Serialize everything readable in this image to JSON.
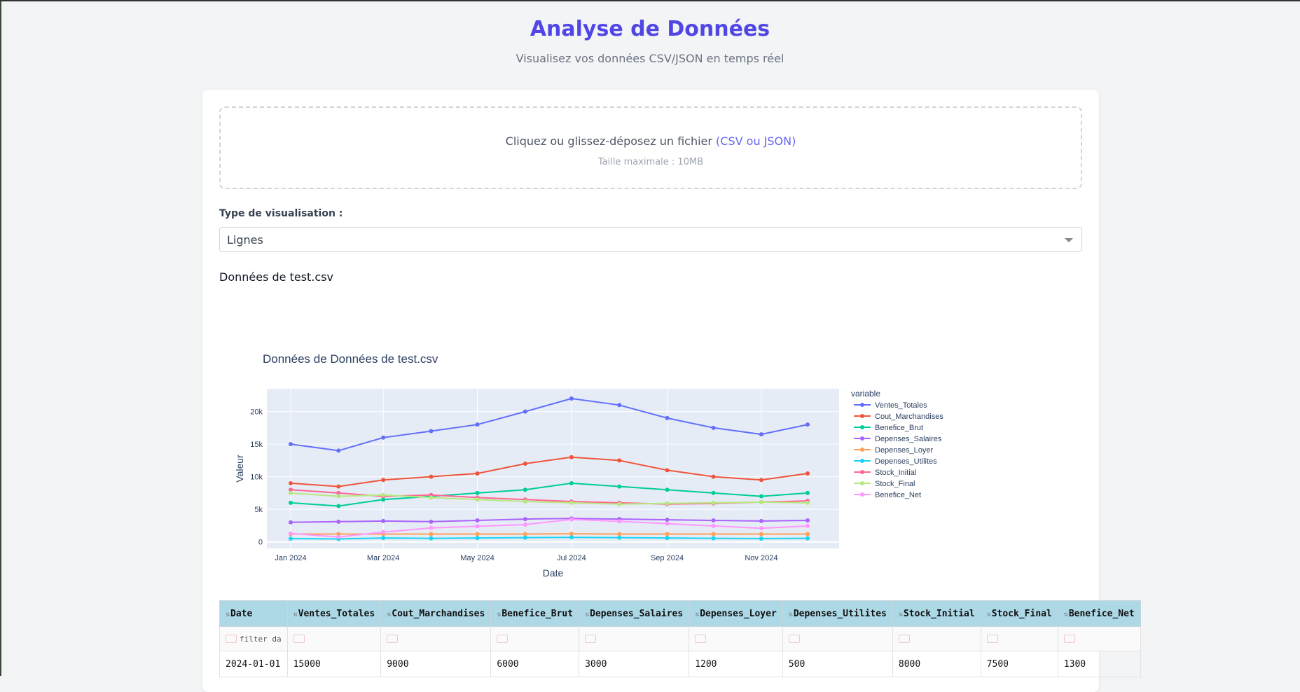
{
  "header": {
    "title": "Analyse de Données",
    "subtitle": "Visualisez vos données CSV/JSON en temps réel"
  },
  "upload": {
    "prompt": "Cliquez ou glissez-déposez un fichier",
    "formats": "(CSV ou JSON)",
    "max_size": "Taille maximale : 10MB"
  },
  "viz": {
    "label": "Type de visualisation :",
    "selected": "Lignes"
  },
  "data_heading": "Données de test.csv",
  "colors": {
    "accent": "#4f46e5",
    "plot_bg": "#e5ecf6",
    "table_header": "#add8e6"
  },
  "chart_data": {
    "type": "line",
    "title": "Données de Données de test.csv",
    "xlabel": "Date",
    "ylabel": "Valeur",
    "legend_title": "variable",
    "legend_position": "right",
    "grid": true,
    "ylim": [
      -1000,
      23500
    ],
    "x": [
      "2024-01-01",
      "2024-02-01",
      "2024-03-01",
      "2024-04-01",
      "2024-05-01",
      "2024-06-01",
      "2024-07-01",
      "2024-08-01",
      "2024-09-01",
      "2024-10-01",
      "2024-11-01",
      "2024-12-01"
    ],
    "x_ticks": [
      {
        "date": "2024-01-01",
        "label": "Jan 2024"
      },
      {
        "date": "2024-03-01",
        "label": "Mar 2024"
      },
      {
        "date": "2024-05-01",
        "label": "May 2024"
      },
      {
        "date": "2024-07-01",
        "label": "Jul 2024"
      },
      {
        "date": "2024-09-01",
        "label": "Sep 2024"
      },
      {
        "date": "2024-11-01",
        "label": "Nov 2024"
      }
    ],
    "y_ticks": [
      {
        "value": 0,
        "label": "0"
      },
      {
        "value": 5000,
        "label": "5k"
      },
      {
        "value": 10000,
        "label": "10k"
      },
      {
        "value": 15000,
        "label": "15k"
      },
      {
        "value": 20000,
        "label": "20k"
      }
    ],
    "series": [
      {
        "name": "Ventes_Totales",
        "color": "#636efa",
        "values": [
          15000,
          14000,
          16000,
          17000,
          18000,
          20000,
          22000,
          21000,
          19000,
          17500,
          16500,
          18000
        ]
      },
      {
        "name": "Cout_Marchandises",
        "color": "#ef553b",
        "values": [
          9000,
          8500,
          9500,
          10000,
          10500,
          12000,
          13000,
          12500,
          11000,
          10000,
          9500,
          10500
        ]
      },
      {
        "name": "Benefice_Brut",
        "color": "#00cc96",
        "values": [
          6000,
          5500,
          6500,
          7000,
          7500,
          8000,
          9000,
          8500,
          8000,
          7500,
          7000,
          7500
        ]
      },
      {
        "name": "Depenses_Salaires",
        "color": "#ab63fa",
        "values": [
          3000,
          3100,
          3200,
          3100,
          3300,
          3500,
          3600,
          3500,
          3400,
          3300,
          3200,
          3300
        ]
      },
      {
        "name": "Depenses_Loyer",
        "color": "#ffa15a",
        "values": [
          1200,
          1200,
          1200,
          1200,
          1200,
          1200,
          1250,
          1200,
          1200,
          1200,
          1200,
          1200
        ]
      },
      {
        "name": "Depenses_Utilites",
        "color": "#19d3f3",
        "values": [
          500,
          450,
          600,
          550,
          600,
          650,
          700,
          650,
          600,
          550,
          500,
          550
        ]
      },
      {
        "name": "Stock_Initial",
        "color": "#ff6692",
        "values": [
          8000,
          7500,
          7000,
          7200,
          6800,
          6500,
          6200,
          6000,
          5800,
          5900,
          6100,
          6300
        ]
      },
      {
        "name": "Stock_Final",
        "color": "#b6e880",
        "values": [
          7500,
          7000,
          7200,
          6800,
          6500,
          6200,
          6000,
          5800,
          5900,
          6000,
          6100,
          6000
        ]
      },
      {
        "name": "Benefice_Net",
        "color": "#ff97ff",
        "values": [
          1300,
          750,
          1500,
          2150,
          2400,
          2650,
          3450,
          3150,
          2800,
          2450,
          2100,
          2450
        ]
      }
    ]
  },
  "table": {
    "columns": [
      "Date",
      "Ventes_Totales",
      "Cout_Marchandises",
      "Benefice_Brut",
      "Depenses_Salaires",
      "Depenses_Loyer",
      "Depenses_Utilites",
      "Stock_Initial",
      "Stock_Final",
      "Benefice_Net"
    ],
    "filter_placeholder": "filter da",
    "rows": [
      [
        "2024-01-01",
        "15000",
        "9000",
        "6000",
        "3000",
        "1200",
        "500",
        "8000",
        "7500",
        "1300"
      ]
    ]
  }
}
